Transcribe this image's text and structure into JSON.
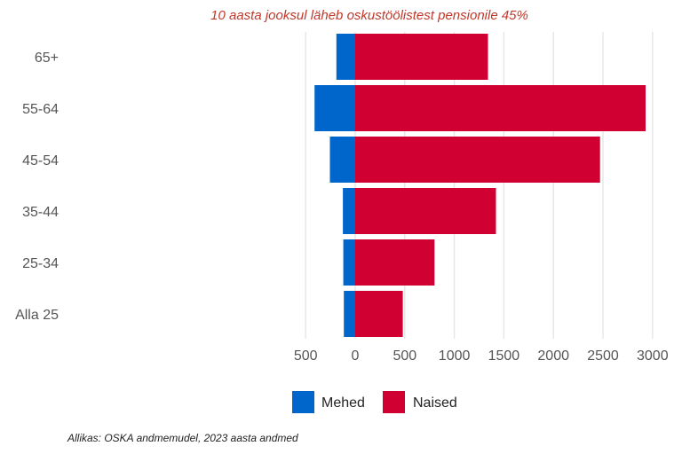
{
  "colors": {
    "mehed": "#0066cc",
    "naised": "#d10033",
    "title": "#c0392b",
    "grid": "#e6e6e6"
  },
  "chart_data": {
    "type": "bar",
    "orientation": "horizontal",
    "title": "10 aasta jooksul läheb oskustöölistest pensionile 45%",
    "categories": [
      "Alla 25",
      "25-34",
      "35-44",
      "45-54",
      "55-64",
      "65+"
    ],
    "series": [
      {
        "name": "Mehed",
        "values": [
          115,
          120,
          125,
          255,
          410,
          190
        ],
        "direction": "left"
      },
      {
        "name": "Naised",
        "values": [
          480,
          800,
          1420,
          2470,
          2930,
          1340
        ],
        "direction": "right"
      }
    ],
    "x_ticks": [
      {
        "value": -500,
        "label": "500"
      },
      {
        "value": 0,
        "label": "0"
      },
      {
        "value": 500,
        "label": "500"
      },
      {
        "value": 1000,
        "label": "1000"
      },
      {
        "value": 1500,
        "label": "1500"
      },
      {
        "value": 2000,
        "label": "2000"
      },
      {
        "value": 2500,
        "label": "2500"
      },
      {
        "value": 3000,
        "label": "3000"
      }
    ],
    "xlim": [
      -600,
      3100
    ],
    "grid": true,
    "legend_position": "bottom"
  },
  "source": "Allikas: OSKA andmemudel, 2023 aasta andmed"
}
